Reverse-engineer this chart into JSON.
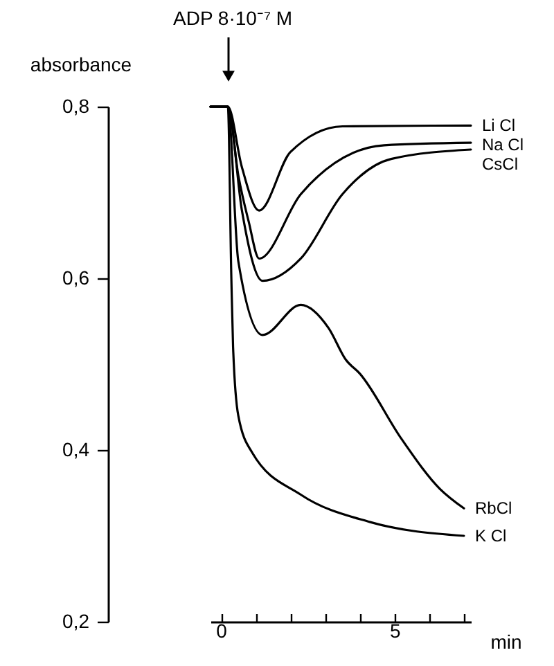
{
  "chart_data": {
    "type": "line",
    "xlabel": "min",
    "ylabel": "absorbance",
    "xlim": [
      -0.3,
      7.2
    ],
    "ylim": [
      0.2,
      0.8
    ],
    "xticks": [
      0,
      {
        "value": 1,
        "label": null
      },
      {
        "value": 2,
        "label": null
      },
      {
        "value": 3,
        "label": null
      },
      {
        "value": 4,
        "label": null
      },
      5,
      {
        "value": 6,
        "label": null
      },
      {
        "value": 7,
        "label": null
      }
    ],
    "yticks": [
      {
        "value": 0.2,
        "label": "0,2"
      },
      {
        "value": 0.4,
        "label": "0,4"
      },
      {
        "value": 0.6,
        "label": "0,6"
      },
      {
        "value": 0.8,
        "label": "0,8"
      }
    ],
    "grid": false,
    "marker": "none",
    "line_style": "solid",
    "annotations": [
      "ADP  8·10⁻⁷ M"
    ],
    "series": [
      {
        "name": "Li Cl",
        "color": "#000000",
        "x": [
          -0.3,
          0.2,
          0.6,
          1.1,
          2.0,
          3.5,
          7.2
        ],
        "values": [
          0.8,
          0.8,
          0.73,
          0.679,
          0.747,
          0.777,
          0.778
        ]
      },
      {
        "name": "Na Cl",
        "color": "#000000",
        "x": [
          -0.3,
          0.2,
          0.5,
          0.8,
          1.1,
          2.3,
          4.7,
          7.2
        ],
        "values": [
          0.8,
          0.8,
          0.72,
          0.666,
          0.623,
          0.698,
          0.755,
          0.758
        ]
      },
      {
        "name": "CsCl",
        "color": "#000000",
        "x": [
          -0.3,
          0.2,
          0.6,
          1.2,
          2.3,
          3.5,
          4.9,
          7.2
        ],
        "values": [
          0.8,
          0.8,
          0.68,
          0.597,
          0.623,
          0.698,
          0.739,
          0.75
        ]
      },
      {
        "name": "RbCl",
        "color": "#000000",
        "x": [
          -0.3,
          0.2,
          0.5,
          1.2,
          2.3,
          3.1,
          3.6,
          4.0,
          5.2,
          6.3,
          7.0
        ],
        "values": [
          0.8,
          0.8,
          0.62,
          0.534,
          0.569,
          0.542,
          0.505,
          0.489,
          0.413,
          0.355,
          0.332
        ]
      },
      {
        "name": "K Cl",
        "color": "#000000",
        "x": [
          -0.3,
          0.2,
          0.3,
          0.35,
          0.5,
          0.9,
          2.3,
          4.3,
          7.0
        ],
        "values": [
          0.8,
          0.8,
          0.6,
          0.52,
          0.44,
          0.397,
          0.348,
          0.316,
          0.3
        ]
      }
    ]
  }
}
